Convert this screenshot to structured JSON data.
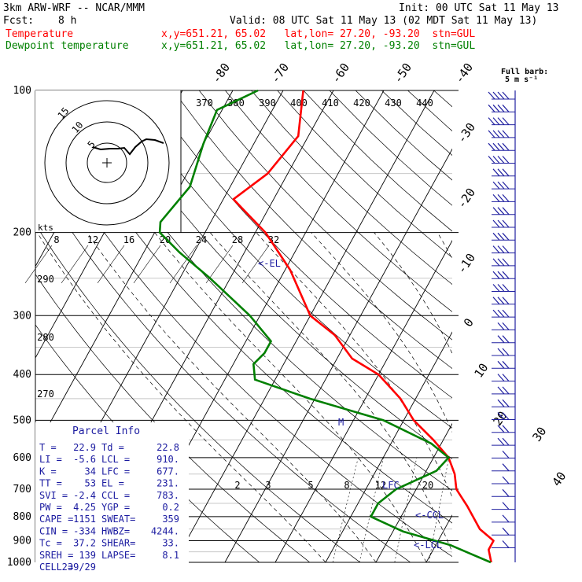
{
  "header": {
    "model_line": "3km ARW-WRF -- NCAR/MMM",
    "init_line": "Init: 00 UTC Sat 11 May 13",
    "fcst_label": "Fcst:",
    "fcst_value": "8 h",
    "valid_line": "Valid: 08 UTC Sat 11 May 13 (02 MDT Sat 11 May 13)",
    "temp_label": "Temperature",
    "temp_info": "x,y=651.21, 65.02   lat,lon= 27.20, -93.20  stn=GUL",
    "dew_label": "Dewpoint temperature",
    "dew_info": "x,y=651.21, 65.02   lat,lon= 27.20, -93.20  stn=GUL"
  },
  "colors": {
    "temperature": "#ff0000",
    "dewpoint": "#008000",
    "info_text": "#1a1aa0",
    "barbs": "#2020a0",
    "grid": "#000000"
  },
  "chart_data": {
    "type": "line",
    "title": "",
    "y_axis": "pressure (hPa), log scale",
    "ylim": [
      1000,
      100
    ],
    "pressure_ticks": [
      100,
      200,
      300,
      400,
      500,
      600,
      700,
      800,
      900,
      1000
    ],
    "isotherm_labels": [
      "-80",
      "-70",
      "-60",
      "-50",
      "-40",
      "-30",
      "-20",
      "-10",
      "0",
      "10",
      "20",
      "30",
      "40"
    ],
    "theta_e_labels": [
      "370",
      "380",
      "390",
      "400",
      "410",
      "420",
      "430",
      "440"
    ],
    "theta_labels": [
      "290",
      "280",
      "270"
    ],
    "mixing_ratio_labels": [
      "2",
      "3",
      "5",
      "8",
      "12",
      "20"
    ],
    "hodograph_ring_labels": [
      "15",
      "10",
      "5"
    ],
    "hodograph_speed_labels": [
      "8",
      "12",
      "16",
      "20",
      "24",
      "28",
      "32"
    ],
    "hodograph_units": "kts",
    "barb_legend": [
      "Full barb:",
      "5 m s⁻¹"
    ],
    "annotations": [
      "<-EL",
      "LFC",
      "<-CCL",
      "<-LCL",
      "M"
    ],
    "series": [
      {
        "name": "Temperature",
        "points": [
          {
            "p": 100,
            "t": -66
          },
          {
            "p": 125,
            "t": -62
          },
          {
            "p": 150,
            "t": -64
          },
          {
            "p": 170,
            "t": -68
          },
          {
            "p": 200,
            "t": -58
          },
          {
            "p": 240,
            "t": -49
          },
          {
            "p": 300,
            "t": -40
          },
          {
            "p": 330,
            "t": -33
          },
          {
            "p": 370,
            "t": -27
          },
          {
            "p": 400,
            "t": -20
          },
          {
            "p": 450,
            "t": -13
          },
          {
            "p": 500,
            "t": -8
          },
          {
            "p": 550,
            "t": -2
          },
          {
            "p": 600,
            "t": 3
          },
          {
            "p": 650,
            "t": 6
          },
          {
            "p": 700,
            "t": 8
          },
          {
            "p": 760,
            "t": 12
          },
          {
            "p": 850,
            "t": 17
          },
          {
            "p": 900,
            "t": 21
          },
          {
            "p": 940,
            "t": 21
          },
          {
            "p": 1000,
            "t": 22.9
          }
        ]
      },
      {
        "name": "Dewpoint temperature",
        "points": [
          {
            "p": 100,
            "t": -75
          },
          {
            "p": 110,
            "t": -81
          },
          {
            "p": 130,
            "t": -80
          },
          {
            "p": 160,
            "t": -78
          },
          {
            "p": 190,
            "t": -80
          },
          {
            "p": 200,
            "t": -79
          },
          {
            "p": 220,
            "t": -73
          },
          {
            "p": 250,
            "t": -64
          },
          {
            "p": 300,
            "t": -52
          },
          {
            "p": 340,
            "t": -45
          },
          {
            "p": 360,
            "t": -45
          },
          {
            "p": 380,
            "t": -46
          },
          {
            "p": 410,
            "t": -44
          },
          {
            "p": 450,
            "t": -31
          },
          {
            "p": 500,
            "t": -14
          },
          {
            "p": 560,
            "t": -2
          },
          {
            "p": 600,
            "t": 3
          },
          {
            "p": 640,
            "t": 2
          },
          {
            "p": 700,
            "t": -4
          },
          {
            "p": 750,
            "t": -6
          },
          {
            "p": 800,
            "t": -6
          },
          {
            "p": 860,
            "t": 2
          },
          {
            "p": 920,
            "t": 13
          },
          {
            "p": 960,
            "t": 18
          },
          {
            "p": 1000,
            "t": 22.8
          }
        ]
      }
    ]
  },
  "parcel_info": {
    "title": "Parcel Info",
    "rows": [
      [
        "T  =",
        "22.9",
        "Td =",
        "22.8"
      ],
      [
        "LI =",
        "-5.6",
        "LCL =",
        "910."
      ],
      [
        "K  =",
        "34",
        "LFC =",
        "677."
      ],
      [
        "TT =",
        "53",
        "EL =",
        "231."
      ],
      [
        "SVI =",
        "-2.4",
        "CCL =",
        "783."
      ],
      [
        "PW =",
        "4.25",
        "YGP =",
        "0.2"
      ],
      [
        "CAPE =",
        "1151",
        "SWEAT=",
        "359"
      ],
      [
        "CIN =",
        "-334",
        "HWBZ=",
        "4244."
      ],
      [
        "Tc =",
        "37.2",
        "SHEAR=",
        "33."
      ],
      [
        "SREH =",
        "139",
        "LAPSE=",
        "8.1"
      ],
      [
        "CELL =",
        "239/29",
        "",
        ""
      ]
    ]
  }
}
